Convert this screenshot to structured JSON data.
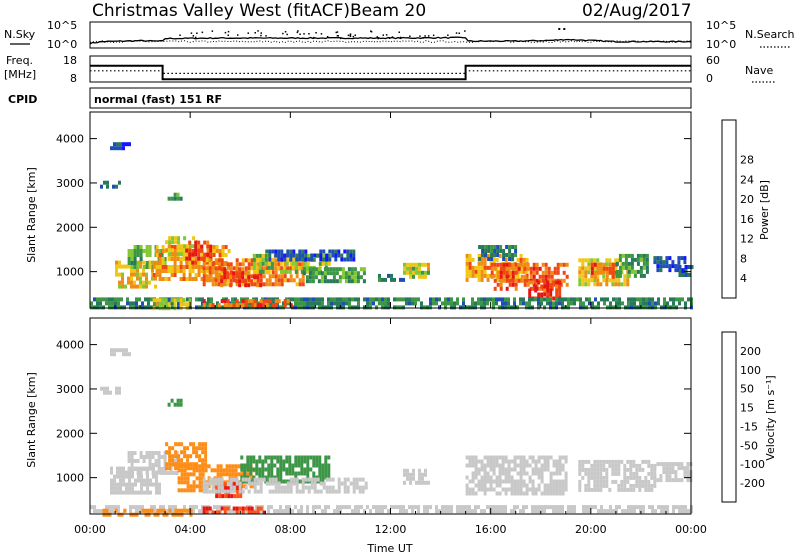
{
  "header": {
    "station": "Christmas Valley West (fitACF)",
    "beam": "Beam 20",
    "date": "02/Aug/2017"
  },
  "summary_panels": {
    "nsky_label": "N.Sky",
    "nsearch_label": "N.Search",
    "freq_label_1": "Freq.",
    "freq_label_2": "[MHz]",
    "nave_label": "Nave",
    "cpid_label": "CPID",
    "cpid_text": "normal (fast) 151 RF",
    "noise_ticks": [
      "10^5",
      "10^0"
    ],
    "freq_ticks": [
      "18",
      "8"
    ],
    "nave_ticks": [
      "60",
      "0"
    ]
  },
  "colors": {
    "power_scale": [
      "#1414ff",
      "#1e50b4",
      "#28785a",
      "#3c9646",
      "#82c832",
      "#f0c814",
      "#f08c14",
      "#f04614",
      "#e61414"
    ],
    "velocity_scale": [
      "#e61414",
      "#ff5014",
      "#ff8c14",
      "#ffb414",
      "#c8c8c8",
      "#78c83c",
      "#3c9646",
      "#1e5ab4",
      "#1414c8"
    ]
  },
  "chart_data": [
    {
      "type": "line",
      "name": "noise-frequency-summary",
      "x_ticks": [
        "00:00",
        "04:00",
        "08:00",
        "12:00",
        "16:00",
        "20:00",
        "00:00"
      ],
      "series": [
        {
          "name": "Freq.",
          "x": [
            0,
            2.9,
            2.9,
            15.0,
            15.0,
            24
          ],
          "values": [
            14.5,
            14.5,
            8.3,
            8.3,
            14.5,
            14.5
          ]
        },
        {
          "name": "Nave",
          "x": [
            0,
            2.9,
            2.9,
            15.0,
            15.0,
            24
          ],
          "values": [
            25,
            25,
            18,
            18,
            25,
            25
          ]
        },
        {
          "name": "N.Sky",
          "x": [
            0,
            0.5,
            2.0,
            2.9,
            3.0,
            5.0,
            8.0,
            12.0,
            15.0,
            15.1,
            17.0,
            18.5,
            19.0,
            21.0,
            24.0
          ],
          "values": [
            0.6,
            1.0,
            1.2,
            1.1,
            1.7,
            1.8,
            1.8,
            1.8,
            1.9,
            1.1,
            1.1,
            1.3,
            1.5,
            1.0,
            1.0
          ]
        }
      ]
    },
    {
      "type": "heatmap",
      "name": "power-panel",
      "xlabel": "Time UT",
      "ylabel": "Slant Range [km]",
      "x_ticks": [
        "00:00",
        "04:00",
        "08:00",
        "12:00",
        "16:00",
        "20:00",
        "00:00"
      ],
      "y_ticks": [
        "1000",
        "2000",
        "3000",
        "4000"
      ],
      "ylim": [
        180,
        4600
      ],
      "colorbar_label": "Power [dB]",
      "colorbar_ticks": [
        "4",
        "8",
        "12",
        "16",
        "20",
        "24",
        "28"
      ],
      "colorbar_range": [
        0,
        32
      ],
      "regions": [
        {
          "t0": 0.8,
          "t1": 1.6,
          "r0": 3820,
          "r1": 3920,
          "v": 5
        },
        {
          "t0": 0.4,
          "t1": 1.2,
          "r0": 2880,
          "r1": 3050,
          "v": 6
        },
        {
          "t0": 3.1,
          "t1": 3.6,
          "r0": 2600,
          "r1": 2780,
          "v": 12
        },
        {
          "t0": 1.0,
          "t1": 2.6,
          "r0": 700,
          "r1": 1250,
          "v": 20
        },
        {
          "t0": 1.5,
          "t1": 3.0,
          "r0": 1100,
          "r1": 1600,
          "v": 14
        },
        {
          "t0": 2.5,
          "t1": 5.5,
          "r0": 800,
          "r1": 1600,
          "v": 22
        },
        {
          "t0": 3.0,
          "t1": 4.2,
          "r0": 1400,
          "r1": 1800,
          "v": 18
        },
        {
          "t0": 3.8,
          "t1": 4.8,
          "r0": 1200,
          "r1": 1700,
          "v": 28
        },
        {
          "t0": 4.5,
          "t1": 8.5,
          "r0": 700,
          "r1": 1300,
          "v": 24
        },
        {
          "t0": 5.2,
          "t1": 6.8,
          "r0": 700,
          "r1": 1100,
          "v": 28
        },
        {
          "t0": 6.5,
          "t1": 9.5,
          "r0": 1000,
          "r1": 1400,
          "v": 16
        },
        {
          "t0": 8.5,
          "t1": 11.0,
          "r0": 750,
          "r1": 1100,
          "v": 12
        },
        {
          "t0": 7.0,
          "t1": 10.5,
          "r0": 1300,
          "r1": 1500,
          "v": 6
        },
        {
          "t0": 12.5,
          "t1": 13.5,
          "r0": 850,
          "r1": 1200,
          "v": 18
        },
        {
          "t0": 11.5,
          "t1": 12.5,
          "r0": 800,
          "r1": 950,
          "v": 8
        },
        {
          "t0": 15.0,
          "t1": 17.5,
          "r0": 800,
          "r1": 1400,
          "v": 22
        },
        {
          "t0": 16.0,
          "t1": 19.0,
          "r0": 600,
          "r1": 1200,
          "v": 26
        },
        {
          "t0": 17.5,
          "t1": 18.8,
          "r0": 400,
          "r1": 800,
          "v": 28
        },
        {
          "t0": 15.5,
          "t1": 17.0,
          "r0": 1300,
          "r1": 1600,
          "v": 8
        },
        {
          "t0": 19.5,
          "t1": 21.5,
          "r0": 750,
          "r1": 1300,
          "v": 20
        },
        {
          "t0": 20.0,
          "t1": 21.0,
          "r0": 900,
          "r1": 1200,
          "v": 26
        },
        {
          "t0": 21.0,
          "t1": 22.2,
          "r0": 900,
          "r1": 1400,
          "v": 12
        },
        {
          "t0": 22.5,
          "t1": 23.8,
          "r0": 1000,
          "r1": 1350,
          "v": 5
        },
        {
          "t0": 23.5,
          "t1": 24.0,
          "r0": 950,
          "r1": 1150,
          "v": 6
        },
        {
          "t0": 0.0,
          "t1": 24.0,
          "r0": 200,
          "r1": 420,
          "v": 10
        },
        {
          "t0": 4.5,
          "t1": 8.0,
          "r0": 200,
          "r1": 380,
          "v": 26
        },
        {
          "t0": 2.5,
          "t1": 4.0,
          "r0": 200,
          "r1": 400,
          "v": 18
        }
      ]
    },
    {
      "type": "heatmap",
      "name": "velocity-panel",
      "xlabel": "Time UT",
      "ylabel": "Slant Range [km]",
      "x_ticks": [
        "00:00",
        "04:00",
        "08:00",
        "12:00",
        "16:00",
        "20:00",
        "00:00"
      ],
      "y_ticks": [
        "1000",
        "2000",
        "3000",
        "4000"
      ],
      "ylim": [
        180,
        4600
      ],
      "colorbar_label": "Velocity [m s⁻¹]",
      "colorbar_ticks": [
        "200",
        "100",
        "50",
        "15",
        "-15",
        "-50",
        "-100",
        "-200"
      ],
      "regions": [
        {
          "t0": 0.8,
          "t1": 1.6,
          "r0": 3820,
          "r1": 3920,
          "v": 0
        },
        {
          "t0": 0.4,
          "t1": 1.2,
          "r0": 2880,
          "r1": 3050,
          "v": 0
        },
        {
          "t0": 3.1,
          "t1": 3.6,
          "r0": 2600,
          "r1": 2780,
          "v": 40
        },
        {
          "t0": 0.8,
          "t1": 2.8,
          "r0": 650,
          "r1": 1250,
          "v": 0
        },
        {
          "t0": 1.5,
          "t1": 3.5,
          "r0": 1100,
          "r1": 1600,
          "v": 0
        },
        {
          "t0": 3.0,
          "t1": 4.6,
          "r0": 1200,
          "r1": 1800,
          "v": -40
        },
        {
          "t0": 3.5,
          "t1": 6.5,
          "r0": 700,
          "r1": 1300,
          "v": -40
        },
        {
          "t0": 5.0,
          "t1": 6.0,
          "r0": 600,
          "r1": 900,
          "v": -150
        },
        {
          "t0": 6.0,
          "t1": 9.5,
          "r0": 900,
          "r1": 1500,
          "v": 40
        },
        {
          "t0": 4.5,
          "t1": 11.0,
          "r0": 700,
          "r1": 1000,
          "v": 0
        },
        {
          "t0": 12.5,
          "t1": 13.5,
          "r0": 850,
          "r1": 1200,
          "v": 0
        },
        {
          "t0": 15.0,
          "t1": 19.0,
          "r0": 600,
          "r1": 1500,
          "v": 0
        },
        {
          "t0": 19.5,
          "t1": 22.5,
          "r0": 750,
          "r1": 1400,
          "v": 0
        },
        {
          "t0": 22.5,
          "t1": 24.0,
          "r0": 950,
          "r1": 1350,
          "v": 0
        },
        {
          "t0": 0.0,
          "t1": 24.0,
          "r0": 200,
          "r1": 380,
          "v": 10
        },
        {
          "t0": 4.5,
          "t1": 7.0,
          "r0": 200,
          "r1": 350,
          "v": -150
        },
        {
          "t0": 0.5,
          "t1": 4.0,
          "r0": 200,
          "r1": 300,
          "v": -40
        }
      ]
    }
  ]
}
